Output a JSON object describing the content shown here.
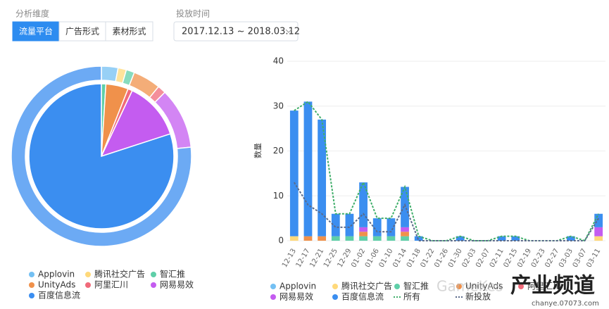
{
  "filters": {
    "dimension_label": "分析维度",
    "dimension_options": [
      "流量平台",
      "广告形式",
      "素材形式"
    ],
    "time_label": "投放时间",
    "time_range": "2017.12.13 ~ 2018.03.12"
  },
  "chart_data": [
    {
      "type": "pie",
      "categories": [
        "Applovin",
        "腾讯社交广告",
        "智汇推",
        "UnityAds",
        "阿里汇川",
        "网易易效",
        "百度信息流"
      ],
      "colors": [
        "#74c0f3",
        "#ffd97a",
        "#5fcfa8",
        "#f0914b",
        "#f06a7a",
        "#c45cf0",
        "#3b8ef0"
      ],
      "inner_values": [
        0,
        0,
        1,
        5,
        1,
        13,
        80
      ],
      "outer_values": [
        3,
        1.5,
        1.5,
        5,
        1.5,
        11,
        77
      ]
    },
    {
      "type": "bar-line",
      "y_label": "数量",
      "categories": [
        "12-13",
        "12-17",
        "12-21",
        "12-25",
        "12-29",
        "01-02",
        "01-06",
        "01-10",
        "01-14",
        "01-18",
        "01-22",
        "01-26",
        "01-30",
        "02-03",
        "02-07",
        "02-11",
        "02-15",
        "02-19",
        "02-23",
        "02-27",
        "03-03",
        "03-07",
        "03-11"
      ],
      "ylim": [
        0,
        40
      ],
      "yticks": [
        0,
        10,
        20,
        30,
        40
      ],
      "series": [
        {
          "name": "Applovin",
          "color": "#74c0f3",
          "values": [
            0,
            0,
            0,
            0,
            0,
            0,
            0,
            0,
            0,
            0,
            0,
            0,
            0,
            0,
            0,
            0,
            0,
            0,
            0,
            0,
            0,
            0,
            0
          ]
        },
        {
          "name": "腾讯社交广告",
          "color": "#ffd97a",
          "values": [
            1,
            0,
            0,
            0,
            0,
            0,
            0,
            0,
            0,
            0,
            0,
            0,
            0,
            0,
            0,
            0,
            0,
            0,
            0,
            0,
            0,
            0,
            1
          ]
        },
        {
          "name": "智汇推",
          "color": "#5fcfa8",
          "values": [
            0,
            0,
            0,
            1,
            1,
            1,
            1,
            1,
            1,
            0,
            0,
            0,
            0,
            0,
            0,
            0,
            0,
            0,
            0,
            0,
            0,
            0,
            0
          ]
        },
        {
          "name": "UnityAds",
          "color": "#f0914b",
          "values": [
            0,
            1,
            1,
            0,
            0,
            1,
            0,
            0,
            1,
            0,
            0,
            0,
            0,
            0,
            0,
            0,
            0,
            0,
            0,
            0,
            0,
            0,
            0
          ]
        },
        {
          "name": "阿里汇川",
          "color": "#f06a7a",
          "values": [
            0,
            0,
            0,
            0,
            0,
            0,
            0,
            0,
            0,
            0,
            0,
            0,
            0,
            0,
            0,
            0,
            0,
            0,
            0,
            0,
            0,
            0,
            0
          ]
        },
        {
          "name": "网易易效",
          "color": "#c45cf0",
          "values": [
            0,
            0,
            0,
            0,
            0,
            1,
            0,
            0,
            1,
            0,
            0,
            0,
            0,
            0,
            0,
            0,
            0,
            0,
            0,
            0,
            0,
            0,
            2
          ]
        },
        {
          "name": "百度信息流",
          "color": "#3b8ef0",
          "values": [
            28,
            30,
            26,
            5,
            5,
            10,
            4,
            4,
            9,
            1,
            0,
            0,
            1,
            0,
            0,
            1,
            1,
            0,
            0,
            0,
            1,
            0,
            3
          ]
        },
        {
          "name": "所有",
          "color": "#3fae6a",
          "line": true,
          "values": [
            29,
            31,
            27,
            6,
            6,
            13,
            5,
            5,
            12,
            1,
            0,
            0,
            1,
            0,
            0,
            1,
            1,
            0,
            0,
            0,
            1,
            0,
            6
          ]
        },
        {
          "name": "新投放",
          "color": "#5a6a8a",
          "line": true,
          "values": [
            13,
            8,
            6,
            3,
            3,
            6,
            2,
            2,
            8,
            0,
            0,
            0,
            0,
            0,
            0,
            0,
            0,
            0,
            0,
            0,
            0,
            0,
            5
          ]
        }
      ]
    }
  ],
  "watermark": [
    "GameKes",
    "产业频道",
    "chanye.07073.com"
  ]
}
